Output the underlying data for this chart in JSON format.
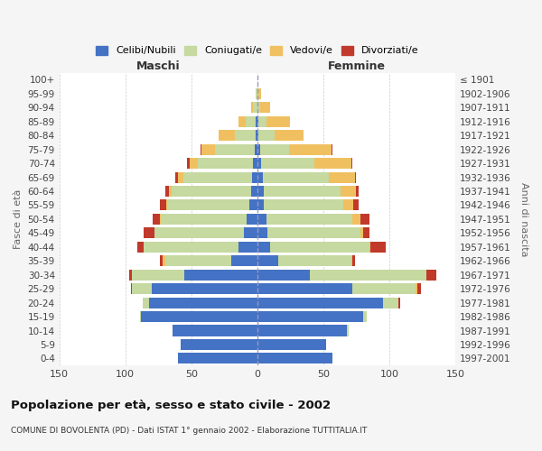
{
  "age_groups": [
    "0-4",
    "5-9",
    "10-14",
    "15-19",
    "20-24",
    "25-29",
    "30-34",
    "35-39",
    "40-44",
    "45-49",
    "50-54",
    "55-59",
    "60-64",
    "65-69",
    "70-74",
    "75-79",
    "80-84",
    "85-89",
    "90-94",
    "95-99",
    "100+"
  ],
  "birth_years": [
    "1997-2001",
    "1992-1996",
    "1987-1991",
    "1982-1986",
    "1977-1981",
    "1972-1976",
    "1967-1971",
    "1962-1966",
    "1957-1961",
    "1952-1956",
    "1947-1951",
    "1942-1946",
    "1937-1941",
    "1932-1936",
    "1927-1931",
    "1922-1926",
    "1917-1921",
    "1912-1916",
    "1907-1911",
    "1902-1906",
    "≤ 1901"
  ],
  "males_celibi": [
    60,
    58,
    64,
    88,
    82,
    80,
    55,
    20,
    14,
    10,
    8,
    6,
    5,
    4,
    3,
    2,
    1,
    1,
    0,
    0,
    0
  ],
  "males_coniugati": [
    0,
    0,
    0,
    1,
    5,
    15,
    40,
    50,
    72,
    68,
    65,
    62,
    60,
    52,
    42,
    30,
    16,
    8,
    3,
    1,
    0
  ],
  "males_vedovi": [
    0,
    0,
    0,
    0,
    0,
    0,
    0,
    2,
    0,
    0,
    1,
    1,
    2,
    4,
    6,
    10,
    12,
    5,
    2,
    0,
    0
  ],
  "males_divorziati": [
    0,
    0,
    0,
    0,
    0,
    1,
    2,
    2,
    5,
    8,
    5,
    5,
    3,
    2,
    2,
    1,
    0,
    0,
    0,
    0,
    0
  ],
  "females_nubili": [
    57,
    52,
    68,
    80,
    95,
    72,
    40,
    16,
    10,
    8,
    7,
    5,
    5,
    4,
    3,
    2,
    1,
    1,
    0,
    0,
    0
  ],
  "females_coniugate": [
    0,
    0,
    1,
    3,
    12,
    48,
    88,
    55,
    75,
    70,
    65,
    60,
    58,
    50,
    40,
    22,
    12,
    6,
    2,
    1,
    0
  ],
  "females_vedove": [
    0,
    0,
    0,
    0,
    0,
    1,
    0,
    1,
    1,
    2,
    6,
    8,
    12,
    20,
    28,
    32,
    22,
    18,
    8,
    2,
    0
  ],
  "females_divorziate": [
    0,
    0,
    0,
    0,
    1,
    3,
    8,
    2,
    11,
    5,
    7,
    4,
    2,
    1,
    1,
    1,
    0,
    0,
    0,
    0,
    0
  ],
  "colors_cel": "#4472c4",
  "colors_con": "#c5d9a0",
  "colors_ved": "#f0c060",
  "colors_div": "#c0392b",
  "xlim": 150,
  "bg_color": "#f5f5f5",
  "plot_bg": "#ffffff",
  "title": "Popolazione per età, sesso e stato civile - 2002",
  "subtitle": "COMUNE DI BOVOLENTA (PD) - Dati ISTAT 1° gennaio 2002 - Elaborazione TUTTITALIA.IT",
  "xlabel_left": "Maschi",
  "xlabel_right": "Femmine",
  "ylabel_left": "Fasce di età",
  "ylabel_right": "Anni di nascita",
  "legend_labels": [
    "Celibi/Nubili",
    "Coniugati/e",
    "Vedovi/e",
    "Divorziati/e"
  ]
}
